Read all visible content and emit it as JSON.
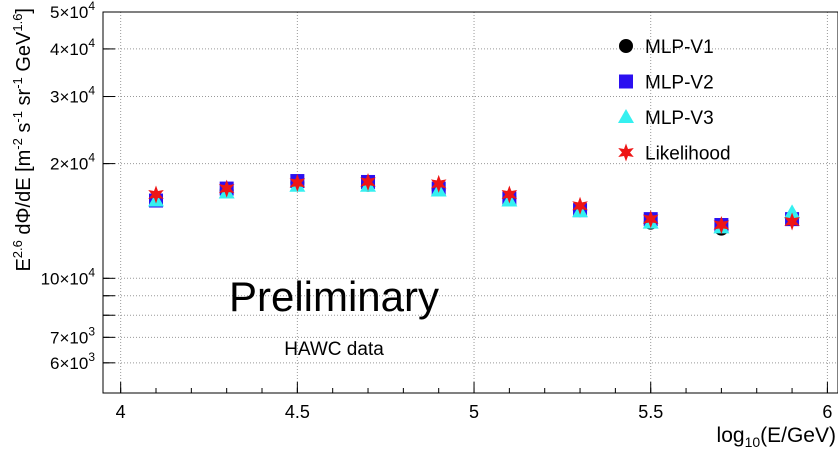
{
  "chart_data": {
    "type": "scatter",
    "xlabel": {
      "text": "log",
      "sub": "10",
      "rest": "(E/GeV)"
    },
    "ylabel": {
      "parts": [
        {
          "t": "E",
          "k": "n"
        },
        {
          "t": "2.6",
          "k": "sup"
        },
        {
          "t": " dΦ/dE [m",
          "k": "n"
        },
        {
          "t": "-2",
          "k": "sup"
        },
        {
          "t": " s",
          "k": "n"
        },
        {
          "t": "-1",
          "k": "sup"
        },
        {
          "t": " sr",
          "k": "n"
        },
        {
          "t": "-1",
          "k": "sup"
        },
        {
          "t": " GeV",
          "k": "n"
        },
        {
          "t": "1.6",
          "k": "sup"
        },
        {
          "t": "]",
          "k": "n"
        }
      ]
    },
    "xlim": [
      3.95,
      6.03
    ],
    "ylim": [
      5000,
      50000
    ],
    "y_scale": "log",
    "grid": true,
    "x_ticks": [
      {
        "value": 4,
        "label": "4"
      },
      {
        "value": 4.5,
        "label": "4.5"
      },
      {
        "value": 5,
        "label": "5"
      },
      {
        "value": 5.5,
        "label": "5.5"
      },
      {
        "value": 6,
        "label": "6"
      }
    ],
    "y_ticks": [
      {
        "value": 6000,
        "mantissa": "6",
        "exp": "3"
      },
      {
        "value": 7000,
        "mantissa": "7",
        "exp": "3"
      },
      {
        "value": 10000,
        "mantissa": "10",
        "exp": "4"
      },
      {
        "value": 20000,
        "mantissa": "2",
        "exp": "4"
      },
      {
        "value": 30000,
        "mantissa": "3",
        "exp": "4"
      },
      {
        "value": 40000,
        "mantissa": "4",
        "exp": "4"
      },
      {
        "value": 50000,
        "mantissa": "5",
        "exp": "4"
      }
    ],
    "y_minor_ticks": [
      8000,
      9000
    ],
    "legend_position": "top-right",
    "series": [
      {
        "name": "MLP-V1",
        "marker": "circle",
        "color": "#000000",
        "x": [
          4.1,
          4.3,
          4.5,
          4.7,
          4.9,
          5.1,
          5.3,
          5.5,
          5.7,
          5.9
        ],
        "y": [
          16000,
          17000,
          17800,
          17600,
          17100,
          16300,
          15100,
          14000,
          13500,
          14400
        ]
      },
      {
        "name": "MLP-V2",
        "marker": "square",
        "color": "#2b10f0",
        "x": [
          4.1,
          4.3,
          4.5,
          4.7,
          4.9,
          5.1,
          5.3,
          5.5,
          5.7,
          5.9
        ],
        "y": [
          16000,
          17200,
          18000,
          17900,
          17200,
          16200,
          15100,
          14300,
          13800,
          14300
        ]
      },
      {
        "name": "MLP-V3",
        "marker": "triangle",
        "color": "#35f0f0",
        "x": [
          4.1,
          4.3,
          4.5,
          4.7,
          4.9,
          5.1,
          5.3,
          5.5,
          5.7,
          5.9
        ],
        "y": [
          16000,
          16800,
          17500,
          17500,
          17000,
          16000,
          15000,
          14000,
          13600,
          14900
        ]
      },
      {
        "name": "Likelihood",
        "marker": "star",
        "color": "#ee1515",
        "x": [
          4.1,
          4.3,
          4.5,
          4.7,
          4.9,
          5.1,
          5.3,
          5.5,
          5.7,
          5.9
        ],
        "y": [
          16600,
          17200,
          17800,
          17900,
          17700,
          16600,
          15500,
          14300,
          13800,
          14100
        ]
      }
    ]
  },
  "annotations": {
    "preliminary": "Preliminary",
    "hawc": "HAWC data"
  }
}
